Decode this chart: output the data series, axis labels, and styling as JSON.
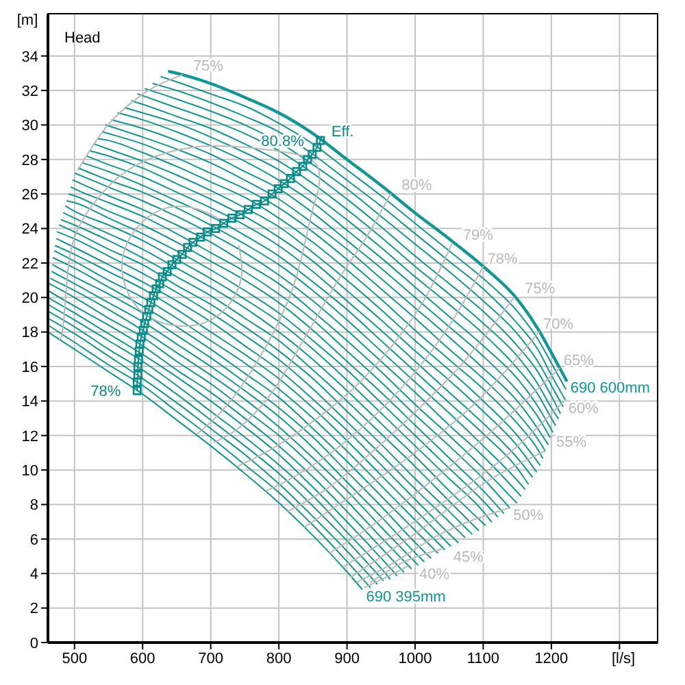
{
  "chart_data": {
    "type": "line",
    "xlabel": "[l/s]",
    "ylabel": "[m]",
    "annotations": [
      "Head",
      {
        "text": "80.8%",
        "x": 861,
        "y": 29.1
      },
      {
        "text": "78%",
        "x": 592,
        "y": 14.6
      }
    ],
    "xlim": [
      461,
      1356
    ],
    "ylim": [
      0,
      36.45
    ],
    "xticks": [
      500,
      600,
      700,
      800,
      900,
      1000,
      1100,
      1200,
      {
        "value": 1300,
        "label": null
      }
    ],
    "yticks": [
      0,
      2,
      4,
      6,
      8,
      10,
      12,
      14,
      16,
      18,
      20,
      22,
      24,
      26,
      28,
      30,
      32,
      34
    ],
    "grid": true,
    "marker": "none",
    "series": [
      {
        "name": "690 600mm",
        "color": "#0f9696",
        "x": [
          639,
          650,
          700,
          750,
          800,
          850,
          900,
          950,
          1000,
          1050,
          1100,
          1150,
          1180,
          1200,
          1222
        ],
        "values": [
          33.1,
          33.0,
          32.4,
          31.6,
          30.7,
          29.5,
          28.0,
          26.5,
          24.9,
          23.4,
          21.8,
          19.9,
          18.2,
          16.8,
          15.2
        ]
      },
      {
        "color": "#0f9696",
        "x": [
          627,
          650,
          700,
          750,
          800,
          850,
          900,
          950,
          1000,
          1050,
          1100,
          1150,
          1180,
          1200,
          1221
        ],
        "values": [
          32.8,
          32.5,
          31.8,
          31.1,
          30.1,
          28.9,
          27.4,
          25.9,
          24.3,
          22.7,
          21.1,
          19.2,
          17.6,
          16.2,
          14.7
        ]
      },
      {
        "color": "#0f9696",
        "x": [
          615,
          650,
          700,
          750,
          800,
          850,
          900,
          950,
          1000,
          1050,
          1100,
          1150,
          1180,
          1200,
          1220
        ],
        "values": [
          32.4,
          32.0,
          31.3,
          30.5,
          29.6,
          28.3,
          26.8,
          25.3,
          23.7,
          22.1,
          20.5,
          18.5,
          17.0,
          15.5,
          14.1
        ]
      },
      {
        "color": "#0f9696",
        "x": [
          604,
          650,
          700,
          750,
          800,
          850,
          900,
          950,
          1000,
          1050,
          1100,
          1150,
          1180,
          1200,
          1217
        ],
        "values": [
          32.1,
          31.5,
          30.8,
          30.0,
          29.0,
          27.7,
          26.3,
          24.7,
          23.1,
          21.5,
          19.8,
          17.9,
          16.3,
          14.9,
          13.7
        ]
      },
      {
        "color": "#0f9696",
        "x": [
          593,
          600,
          650,
          700,
          750,
          800,
          850,
          900,
          950,
          1000,
          1050,
          1100,
          1150,
          1180,
          1200,
          1213
        ],
        "values": [
          31.8,
          31.7,
          31.0,
          30.3,
          29.5,
          28.5,
          27.2,
          25.7,
          24.1,
          22.4,
          20.8,
          19.2,
          17.2,
          15.7,
          14.3,
          13.3
        ]
      },
      {
        "color": "#0f9696",
        "x": [
          584,
          600,
          650,
          700,
          750,
          800,
          850,
          900,
          950,
          1000,
          1050,
          1100,
          1150,
          1180,
          1200,
          1210
        ],
        "values": [
          31.4,
          31.2,
          30.5,
          29.8,
          28.9,
          27.9,
          26.6,
          25.1,
          23.5,
          21.8,
          20.2,
          18.5,
          16.6,
          15.0,
          13.6,
          13.0
        ]
      },
      {
        "color": "#0f9696",
        "x": [
          574,
          600,
          650,
          700,
          750,
          800,
          850,
          900,
          950,
          1000,
          1050,
          1100,
          1150,
          1180,
          1200,
          1206
        ],
        "values": [
          31.0,
          30.7,
          30.1,
          29.3,
          28.4,
          27.4,
          26.0,
          24.5,
          22.9,
          21.2,
          19.6,
          17.9,
          15.9,
          14.4,
          13.0,
          12.6
        ]
      },
      {
        "color": "#0f9696",
        "x": [
          564,
          600,
          650,
          700,
          750,
          800,
          850,
          900,
          950,
          1000,
          1050,
          1100,
          1150,
          1180,
          1202
        ],
        "values": [
          30.7,
          30.3,
          29.6,
          28.8,
          27.9,
          26.8,
          25.5,
          23.9,
          22.3,
          20.6,
          18.9,
          17.2,
          15.3,
          13.7,
          12.2
        ]
      },
      {
        "color": "#0f9696",
        "x": [
          555,
          600,
          650,
          700,
          750,
          800,
          850,
          900,
          950,
          1000,
          1050,
          1100,
          1150,
          1180,
          1198
        ],
        "values": [
          30.3,
          29.8,
          29.1,
          28.3,
          27.3,
          26.3,
          24.9,
          23.3,
          21.7,
          20.0,
          18.3,
          16.6,
          14.6,
          13.1,
          11.9
        ]
      },
      {
        "color": "#0f9696",
        "x": [
          546,
          600,
          650,
          700,
          750,
          800,
          850,
          900,
          950,
          1000,
          1050,
          1100,
          1150,
          1180,
          1195
        ],
        "values": [
          30.0,
          29.3,
          28.6,
          27.8,
          26.8,
          25.7,
          24.3,
          22.8,
          21.1,
          19.4,
          17.7,
          15.9,
          14.0,
          12.4,
          11.5
        ]
      },
      {
        "color": "#0f9696",
        "x": [
          541,
          550,
          600,
          650,
          700,
          750,
          800,
          850,
          900,
          950,
          1000,
          1050,
          1100,
          1150,
          1180,
          1191
        ],
        "values": [
          29.6,
          29.5,
          28.9,
          28.1,
          27.2,
          26.3,
          25.2,
          23.8,
          22.2,
          20.5,
          18.8,
          17.0,
          15.3,
          13.3,
          11.8,
          11.1
        ]
      },
      {
        "color": "#0f9696",
        "x": [
          535,
          550,
          600,
          650,
          700,
          750,
          800,
          850,
          900,
          950,
          1000,
          1050,
          1100,
          1150,
          1180,
          1187
        ],
        "values": [
          29.2,
          29.1,
          28.4,
          27.6,
          26.7,
          25.8,
          24.6,
          23.2,
          21.6,
          19.9,
          18.1,
          16.4,
          14.7,
          12.7,
          11.2,
          10.7
        ]
      },
      {
        "color": "#0f9696",
        "x": [
          529,
          550,
          600,
          650,
          700,
          750,
          800,
          850,
          900,
          950,
          1000,
          1050,
          1100,
          1150,
          1183
        ],
        "values": [
          28.9,
          28.6,
          27.9,
          27.1,
          26.2,
          25.2,
          24.1,
          22.6,
          21.0,
          19.3,
          17.5,
          15.8,
          14.0,
          12.0,
          10.3
        ]
      },
      {
        "color": "#0f9696",
        "x": [
          523,
          550,
          600,
          650,
          700,
          750,
          800,
          850,
          900,
          950,
          1000,
          1050,
          1100,
          1150,
          1178
        ],
        "values": [
          28.5,
          28.2,
          27.5,
          26.6,
          25.7,
          24.7,
          23.5,
          22.1,
          20.4,
          18.7,
          16.9,
          15.2,
          13.4,
          11.4,
          9.9
        ]
      },
      {
        "color": "#0f9696",
        "x": [
          518,
          550,
          600,
          650,
          700,
          750,
          800,
          850,
          900,
          950,
          1000,
          1050,
          1100,
          1150,
          1172
        ],
        "values": [
          28.2,
          27.7,
          27.0,
          26.1,
          25.2,
          24.2,
          23.0,
          21.5,
          19.8,
          18.1,
          16.3,
          14.5,
          12.7,
          10.7,
          9.6
        ]
      },
      {
        "color": "#0f9696",
        "x": [
          512,
          550,
          600,
          650,
          700,
          750,
          800,
          850,
          900,
          950,
          1000,
          1050,
          1100,
          1150,
          1166
        ],
        "values": [
          27.8,
          27.3,
          26.5,
          25.6,
          24.7,
          23.6,
          22.4,
          20.9,
          19.3,
          17.5,
          15.7,
          13.9,
          12.1,
          10.1,
          9.2
        ]
      },
      {
        "color": "#0f9696",
        "x": [
          506,
          550,
          600,
          650,
          700,
          750,
          800,
          850,
          900,
          950,
          1000,
          1050,
          1100,
          1150,
          1161
        ],
        "values": [
          27.5,
          26.8,
          26.1,
          25.2,
          24.2,
          23.1,
          21.9,
          20.4,
          18.7,
          16.9,
          15.1,
          13.3,
          11.4,
          9.4,
          8.9
        ]
      },
      {
        "color": "#0f9696",
        "x": [
          501,
          550,
          600,
          650,
          700,
          750,
          800,
          850,
          900,
          950,
          1000,
          1050,
          1100,
          1155
        ],
        "values": [
          27.2,
          26.4,
          25.6,
          24.7,
          23.7,
          22.6,
          21.3,
          19.8,
          18.1,
          16.3,
          14.5,
          12.6,
          10.8,
          8.5
        ]
      },
      {
        "color": "#0f9696",
        "x": [
          498,
          550,
          600,
          650,
          700,
          750,
          800,
          850,
          900,
          950,
          1000,
          1050,
          1100,
          1149
        ],
        "values": [
          26.8,
          25.9,
          25.1,
          24.2,
          23.2,
          22.0,
          20.8,
          19.2,
          17.5,
          15.7,
          13.8,
          12.0,
          10.1,
          8.1
        ]
      },
      {
        "color": "#0f9696",
        "x": [
          495,
          500,
          550,
          600,
          650,
          700,
          750,
          800,
          850,
          900,
          950,
          1000,
          1050,
          1100,
          1139
        ],
        "values": [
          26.4,
          26.3,
          25.5,
          24.7,
          23.7,
          22.6,
          21.5,
          20.2,
          18.7,
          16.9,
          15.1,
          13.2,
          11.4,
          9.5,
          7.8
        ]
      },
      {
        "color": "#0f9696",
        "x": [
          492,
          500,
          550,
          600,
          650,
          700,
          750,
          800,
          850,
          900,
          950,
          1000,
          1050,
          1100,
          1130
        ],
        "values": [
          26.0,
          25.9,
          25.0,
          24.2,
          23.2,
          22.1,
          21.0,
          19.7,
          18.1,
          16.3,
          14.5,
          12.6,
          10.7,
          8.8,
          7.5
        ]
      },
      {
        "color": "#0f9696",
        "x": [
          489,
          500,
          550,
          600,
          650,
          700,
          750,
          800,
          850,
          900,
          950,
          1000,
          1050,
          1100,
          1121
        ],
        "values": [
          25.6,
          25.5,
          24.6,
          23.7,
          22.7,
          21.6,
          20.4,
          19.1,
          17.5,
          15.8,
          13.9,
          12.0,
          10.1,
          8.2,
          7.3
        ]
      },
      {
        "color": "#0f9696",
        "x": [
          487,
          500,
          550,
          600,
          650,
          700,
          750,
          800,
          850,
          900,
          950,
          1000,
          1050,
          1100,
          1112
        ],
        "values": [
          25.3,
          25.0,
          24.2,
          23.3,
          22.2,
          21.1,
          19.9,
          18.6,
          17.0,
          15.2,
          13.3,
          11.4,
          9.5,
          7.6,
          7.0
        ]
      },
      {
        "color": "#0f9696",
        "x": [
          484,
          500,
          550,
          600,
          650,
          700,
          750,
          800,
          850,
          900,
          950,
          1000,
          1050,
          1103
        ],
        "values": [
          24.9,
          24.6,
          23.7,
          22.8,
          21.7,
          20.6,
          19.4,
          18.0,
          16.4,
          14.6,
          12.7,
          10.8,
          8.8,
          6.8
        ]
      },
      {
        "color": "#0f9696",
        "x": [
          481,
          500,
          550,
          600,
          650,
          700,
          750,
          800,
          850,
          900,
          950,
          1000,
          1050,
          1093
        ],
        "values": [
          24.5,
          24.2,
          23.3,
          22.3,
          21.2,
          20.1,
          18.8,
          17.5,
          15.8,
          14.0,
          12.1,
          10.2,
          8.2,
          6.5
        ]
      },
      {
        "color": "#0f9696",
        "x": [
          478,
          500,
          550,
          600,
          650,
          700,
          750,
          800,
          850,
          900,
          950,
          1000,
          1050,
          1083
        ],
        "values": [
          24.2,
          23.8,
          22.8,
          21.9,
          20.7,
          19.6,
          18.3,
          16.9,
          15.3,
          13.4,
          11.5,
          9.5,
          7.6,
          6.3
        ]
      },
      {
        "color": "#0f9696",
        "x": [
          475,
          500,
          550,
          600,
          650,
          700,
          750,
          800,
          850,
          900,
          950,
          1000,
          1050,
          1073
        ],
        "values": [
          23.8,
          23.4,
          22.4,
          21.4,
          20.3,
          19.1,
          17.8,
          16.4,
          14.7,
          12.8,
          10.9,
          8.9,
          7.0,
          6.1
        ]
      },
      {
        "color": "#0f9696",
        "x": [
          474,
          500,
          550,
          600,
          650,
          700,
          750,
          800,
          850,
          900,
          950,
          1000,
          1050,
          1063
        ],
        "values": [
          23.4,
          22.9,
          21.9,
          20.9,
          19.8,
          18.6,
          17.2,
          15.8,
          14.1,
          12.3,
          10.3,
          8.3,
          6.3,
          5.8
        ]
      },
      {
        "color": "#0f9696",
        "x": [
          472,
          500,
          550,
          600,
          650,
          700,
          750,
          800,
          850,
          900,
          950,
          1000,
          1052
        ],
        "values": [
          23.0,
          22.5,
          21.5,
          20.5,
          19.3,
          18.0,
          16.7,
          15.3,
          13.6,
          11.7,
          9.7,
          7.7,
          5.6
        ]
      },
      {
        "color": "#0f9696",
        "x": [
          471,
          500,
          550,
          600,
          650,
          700,
          750,
          800,
          850,
          900,
          950,
          1000,
          1043
        ],
        "values": [
          22.7,
          22.1,
          21.0,
          20.0,
          18.8,
          17.5,
          16.2,
          14.7,
          13.0,
          11.1,
          9.1,
          7.1,
          5.4
        ]
      },
      {
        "color": "#0f9696",
        "x": [
          469,
          500,
          550,
          600,
          650,
          700,
          750,
          800,
          850,
          900,
          950,
          1000,
          1033
        ],
        "values": [
          22.3,
          21.7,
          20.6,
          19.5,
          18.3,
          17.0,
          15.6,
          14.2,
          12.4,
          10.5,
          8.5,
          6.5,
          5.2
        ]
      },
      {
        "color": "#0f9696",
        "x": [
          468,
          500,
          550,
          600,
          650,
          700,
          750,
          800,
          850,
          900,
          950,
          1000,
          1023
        ],
        "values": [
          21.9,
          21.2,
          20.2,
          19.1,
          17.8,
          16.5,
          15.1,
          13.6,
          11.9,
          9.9,
          7.9,
          5.8,
          4.9
        ]
      },
      {
        "color": "#0f9696",
        "x": [
          467,
          500,
          550,
          600,
          650,
          700,
          750,
          800,
          850,
          900,
          950,
          1000,
          1013
        ],
        "values": [
          21.5,
          20.8,
          19.7,
          18.6,
          17.3,
          16.0,
          14.6,
          13.1,
          11.3,
          9.3,
          7.3,
          5.2,
          4.7
        ]
      },
      {
        "color": "#0f9696",
        "x": [
          465,
          500,
          550,
          600,
          650,
          700,
          750,
          800,
          850,
          900,
          950,
          1004
        ],
        "values": [
          21.1,
          20.4,
          19.3,
          18.1,
          16.8,
          15.5,
          14.1,
          12.5,
          10.7,
          8.8,
          6.7,
          4.5
        ]
      },
      {
        "color": "#0f9696",
        "x": [
          463,
          500,
          550,
          600,
          650,
          700,
          750,
          800,
          850,
          900,
          950,
          994
        ],
        "values": [
          20.8,
          20.0,
          18.8,
          17.7,
          16.3,
          15.0,
          13.5,
          12.0,
          10.2,
          8.2,
          6.1,
          4.3
        ]
      },
      {
        "color": "#0f9696",
        "x": [
          461,
          500,
          550,
          600,
          650,
          700,
          750,
          800,
          850,
          900,
          950,
          983
        ],
        "values": [
          20.4,
          19.5,
          18.4,
          17.2,
          15.8,
          14.5,
          13.0,
          11.4,
          9.6,
          7.6,
          5.5,
          4.1
        ]
      },
      {
        "color": "#0f9696",
        "x": [
          461,
          500,
          550,
          600,
          650,
          700,
          750,
          800,
          850,
          900,
          950,
          973
        ],
        "values": [
          20.0,
          19.1,
          17.9,
          16.7,
          15.4,
          14.0,
          12.5,
          10.9,
          9.0,
          7.0,
          4.9,
          3.9
        ]
      },
      {
        "color": "#0f9696",
        "x": [
          461,
          500,
          550,
          600,
          650,
          700,
          750,
          800,
          850,
          900,
          950,
          963
        ],
        "values": [
          19.6,
          18.7,
          17.5,
          16.3,
          14.9,
          13.4,
          11.9,
          10.3,
          8.5,
          6.4,
          4.3,
          3.7
        ]
      },
      {
        "color": "#0f9696",
        "x": [
          461,
          500,
          550,
          600,
          650,
          700,
          750,
          800,
          850,
          900,
          953
        ],
        "values": [
          19.2,
          18.3,
          17.0,
          15.8,
          14.4,
          12.9,
          11.4,
          9.8,
          7.9,
          5.9,
          3.6
        ]
      },
      {
        "color": "#0f9696",
        "x": [
          461,
          500,
          550,
          600,
          650,
          700,
          750,
          800,
          850,
          900,
          944
        ],
        "values": [
          18.8,
          17.9,
          16.6,
          15.3,
          13.9,
          12.4,
          10.9,
          9.2,
          7.3,
          5.3,
          3.4
        ]
      },
      {
        "color": "#0f9696",
        "x": [
          461,
          500,
          550,
          600,
          650,
          700,
          750,
          800,
          850,
          900,
          934
        ],
        "values": [
          18.4,
          17.4,
          16.1,
          14.9,
          13.4,
          11.9,
          10.3,
          8.7,
          6.8,
          4.7,
          3.2
        ]
      },
      {
        "name": "690 395mm",
        "color": "#0f9696",
        "x": [
          461,
          500,
          550,
          600,
          650,
          700,
          750,
          800,
          850,
          900,
          922
        ],
        "values": [
          18.0,
          17.0,
          15.7,
          14.4,
          12.9,
          11.4,
          9.8,
          8.1,
          6.2,
          4.1,
          3.1
        ]
      },
      {
        "color": "#b9b9b9",
        "x": [
          715,
          673,
          628,
          591,
          571,
          575,
          601,
          643,
          688,
          725,
          745,
          741
        ],
        "values": [
          24.5,
          25.2,
          25.1,
          24.0,
          22.4,
          20.6,
          19.1,
          18.4,
          18.5,
          19.5,
          21.2,
          23.0
        ]
      },
      {
        "color": "#b9b9b9",
        "x": [
          478,
          483,
          489,
          503,
          542,
          592,
          672,
          753,
          813,
          855,
          857,
          847,
          825,
          787,
          733,
          692,
          680
        ],
        "values": [
          17.6,
          18.2,
          21.0,
          23.8,
          26.1,
          27.7,
          28.7,
          28.7,
          28.4,
          27.7,
          26.1,
          24.7,
          21.1,
          17.6,
          14.2,
          12.5,
          12.1
        ]
      },
      {
        "name": "80%",
        "color": "#b9b9b9",
        "x": [
          705,
          740,
          790,
          840,
          890,
          930,
          964
        ],
        "values": [
          11.6,
          12.4,
          14.5,
          17.8,
          21.2,
          23.6,
          26.0
        ]
      },
      {
        "name": "79%",
        "color": "#b9b9b9",
        "x": [
          739,
          793,
          853,
          914,
          974,
          1014,
          1054
        ],
        "values": [
          10.2,
          11.3,
          12.9,
          14.9,
          17.6,
          19.9,
          23.1
        ]
      },
      {
        "name": "78%",
        "color": "#b9b9b9",
        "x": [
          782,
          813,
          873,
          934,
          994,
          1054,
          1100
        ],
        "values": [
          8.8,
          9.4,
          10.9,
          12.9,
          15.4,
          18.6,
          21.8
        ]
      },
      {
        "name": "75%",
        "color": "#b9b9b9",
        "x": [
          505,
          545,
          597,
          658
        ],
        "values": [
          27.4,
          29.8,
          31.7,
          32.9
        ]
      },
      {
        "name": "75%",
        "color": "#b9b9b9",
        "x": [
          813,
          870,
          930,
          996,
          1070,
          1145
        ],
        "values": [
          7.6,
          8.9,
          10.8,
          13.2,
          16.2,
          20.0
        ]
      },
      {
        "name": "70%",
        "color": "#b9b9b9",
        "x": [
          838,
          884,
          996,
          1086,
          1182
        ],
        "values": [
          6.7,
          7.9,
          10.9,
          13.8,
          18.0
        ]
      },
      {
        "name": "65%",
        "color": "#b9b9b9",
        "x": [
          875,
          930,
          996,
          1108,
          1212
        ],
        "values": [
          5.2,
          6.6,
          8.5,
          12.1,
          15.9
        ]
      },
      {
        "name": "60%",
        "color": "#b9b9b9",
        "x": [
          895,
          960,
          1033,
          1145,
          1219
        ],
        "values": [
          4.4,
          6.0,
          7.9,
          11.2,
          14.0
        ]
      },
      {
        "name": "55%",
        "color": "#b9b9b9",
        "x": [
          906,
          940,
          996,
          1108,
          1191
        ],
        "values": [
          3.8,
          4.7,
          6.2,
          9.4,
          11.1
        ]
      },
      {
        "name": "50%",
        "color": "#b9b9b9",
        "x": [
          915,
          959,
          1033,
          1138
        ],
        "values": [
          3.5,
          4.4,
          6.2,
          7.8
        ]
      },
      {
        "name": "45%",
        "color": "#b9b9b9",
        "x": [
          935,
          985,
          1038
        ],
        "values": [
          3.5,
          4.7,
          5.4
        ]
      },
      {
        "name": "40%",
        "color": "#b9b9b9",
        "x": [
          926,
          958,
          988
        ],
        "values": [
          3.2,
          3.8,
          4.4
        ]
      },
      {
        "name": "Eff.",
        "marker": "square",
        "color": "#0b8a8a",
        "x": [
          592,
          592,
          593,
          593,
          594,
          595,
          596,
          598,
          601,
          603,
          606,
          609,
          612,
          616,
          620,
          625,
          629,
          636,
          643,
          650,
          658,
          666,
          674,
          685,
          695,
          707,
          719,
          731,
          743,
          755,
          767,
          779,
          790,
          799,
          808,
          817,
          826,
          835,
          842,
          849,
          856,
          861
        ],
        "values": [
          14.6,
          15.1,
          15.5,
          16.0,
          16.4,
          16.9,
          17.3,
          17.7,
          18.1,
          18.5,
          18.9,
          19.3,
          19.7,
          20.1,
          20.5,
          20.8,
          21.2,
          21.5,
          21.9,
          22.2,
          22.5,
          22.9,
          23.2,
          23.5,
          23.8,
          24.0,
          24.3,
          24.6,
          24.8,
          25.1,
          25.4,
          25.6,
          26.0,
          26.3,
          26.6,
          26.9,
          27.3,
          27.6,
          28.0,
          28.3,
          28.7,
          29.1
        ]
      }
    ]
  }
}
